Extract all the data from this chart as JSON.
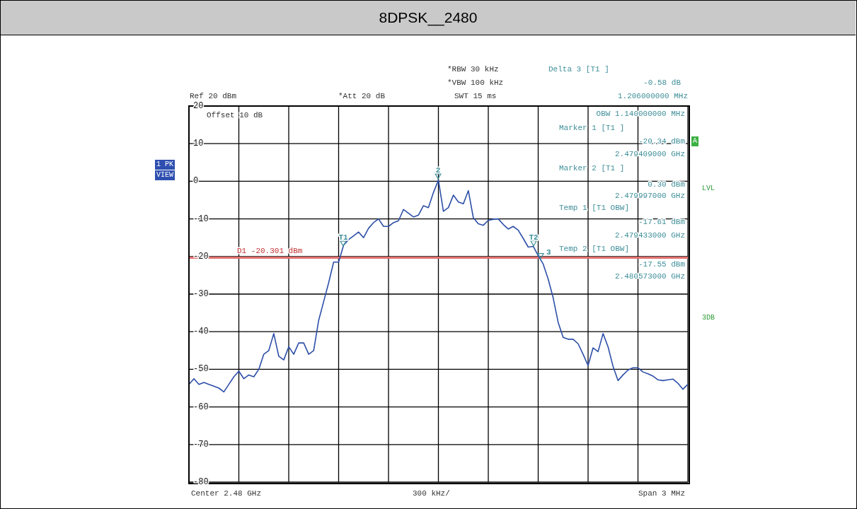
{
  "chart_data": {
    "type": "line",
    "title": "8DPSK__2480",
    "categories": [
      null,
      null,
      null,
      null,
      null,
      null,
      null,
      null,
      null,
      null,
      null,
      null,
      null,
      null,
      null,
      null,
      null,
      null,
      null,
      null,
      null,
      null,
      null,
      null,
      null,
      null,
      null,
      null,
      null,
      null,
      null,
      null,
      null,
      null,
      null,
      null,
      null,
      null,
      null,
      null,
      null,
      null,
      null,
      null,
      null,
      null,
      null,
      null,
      null,
      null,
      null,
      null,
      null,
      null,
      null,
      null,
      null,
      null,
      null,
      null,
      null,
      null,
      null,
      null,
      null,
      null,
      null,
      null,
      null,
      null,
      null,
      null,
      null,
      null,
      null,
      null,
      null,
      null,
      null,
      null,
      null,
      null,
      null,
      null,
      null,
      null,
      null,
      null,
      null,
      null,
      null,
      null,
      null,
      null,
      null,
      null,
      null,
      null,
      null,
      null,
      null
    ],
    "series": [
      {
        "color": "#2d4fa8",
        "values": [
          -54,
          -52.5,
          -54,
          -53.5,
          -54,
          -54.5,
          -55,
          -56,
          -54,
          -52,
          -50.5,
          -52.5,
          -51.5,
          -52,
          -50,
          -46,
          -45,
          -40.5,
          -46.5,
          -47.5,
          -44,
          -46,
          -43,
          -43,
          -46,
          -45,
          -37,
          -32,
          -27,
          -21.5,
          -21.5,
          -17,
          -15.5,
          -14.5,
          -13.5,
          -15,
          -12.5,
          -11,
          -10,
          -12,
          -12,
          -11,
          -10.5,
          -7.5,
          -8.5,
          -9.5,
          -9,
          -6.5,
          -7,
          -3,
          0.3,
          -8,
          -7,
          -3.7,
          -5.5,
          -6,
          -2.5,
          -9.7,
          -11.3,
          -11.7,
          -10.4,
          -10.1,
          -10,
          -11.5,
          -12.7,
          -12,
          -13,
          -15.2,
          -17.5,
          -17.3,
          -19.8,
          -22,
          -26,
          -31,
          -37.5,
          -41.5,
          -42,
          -42,
          -43.2,
          -46,
          -49,
          -44.3,
          -45.3,
          -40.5,
          -44,
          -49.2,
          -53,
          -51.5,
          -50.2,
          -49.6,
          -49.6,
          -50.7,
          -51.2,
          -51.8,
          -52.8,
          -53,
          -52.8,
          -52.6,
          -53.7,
          -55.3,
          -54
        ]
      }
    ],
    "ylim": [
      -80,
      20
    ],
    "yticks": [
      20,
      10,
      0,
      -10,
      -20,
      -30,
      -40,
      -50,
      -60,
      -70,
      -80
    ],
    "grid": true,
    "ref_lines": [
      {
        "axis": "y",
        "value": -20.301,
        "label": "D1 -20.301 dBm",
        "color": "#e07070"
      }
    ],
    "annotations": [
      "Ref 20 dBm",
      "*Att 20 dB",
      "*RBW 30 kHz",
      "*VBW 100 kHz",
      "SWT 15 ms",
      "Delta 3 [T1 ]",
      "-0.58 dB",
      "1.206000000 MHz",
      "OBW 1.140000000 MHz",
      "Marker 1 [T1 ]",
      "-20.34 dBm",
      "2.479409000 GHz",
      "Marker 2 [T1 ]",
      "0.30 dBm",
      "2.479997000 GHz",
      "Temp 1 [T1 OBW]",
      "-17.61 dBm",
      "2.479433000 GHz",
      "Temp 2 [T1 OBW]",
      "-17.55 dBm",
      "2.480573000 GHz",
      "Offset 10 dB",
      "Center 2.48 GHz",
      "300 kHz/",
      "Span 3 MHz",
      "1 PK",
      "VIEW",
      "A",
      "LVL",
      "3DB",
      {
        "text": "2",
        "y": 0.3
      },
      {
        "text": "T1",
        "y": -17.61
      },
      {
        "text": "T2",
        "y": -17.55
      },
      {
        "text": "3",
        "y": -20.92
      }
    ]
  }
}
